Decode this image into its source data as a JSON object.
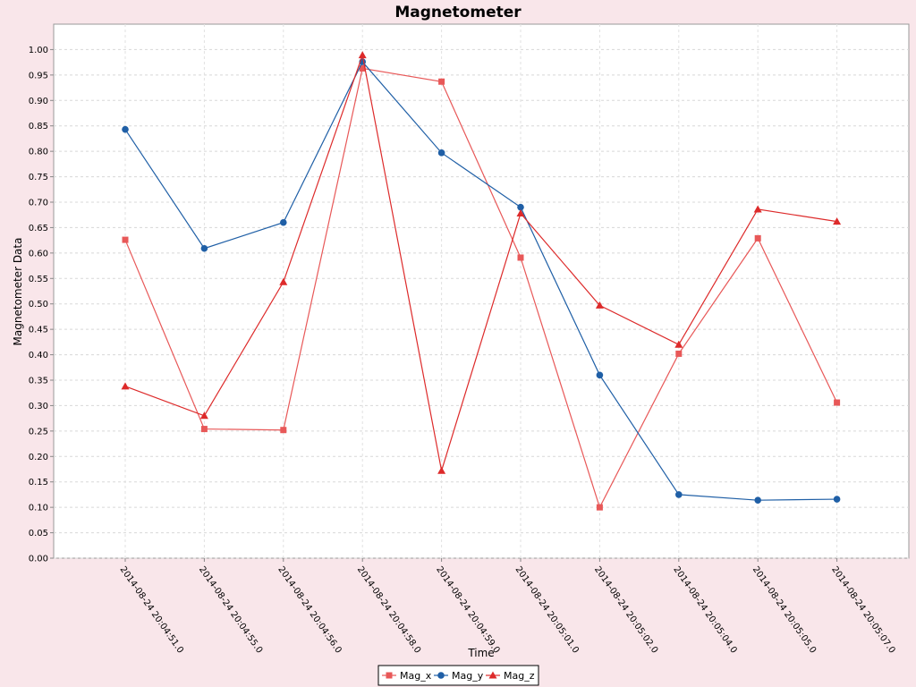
{
  "chart_data": {
    "type": "line",
    "title": "Magnetometer",
    "xlabel": "Time",
    "ylabel": "Magnetometer Data",
    "ylim": [
      0,
      1.05
    ],
    "y_ticks": [
      "0.00",
      "0.05",
      "0.10",
      "0.15",
      "0.20",
      "0.25",
      "0.30",
      "0.35",
      "0.40",
      "0.45",
      "0.50",
      "0.55",
      "0.60",
      "0.65",
      "0.70",
      "0.75",
      "0.80",
      "0.85",
      "0.90",
      "0.95",
      "1.00"
    ],
    "grid": true,
    "legend_position": "bottom",
    "categories": [
      "2014-08-24 20:04:51.0",
      "2014-08-24 20:04:55.0",
      "2014-08-24 20:04:56.0",
      "2014-08-24 20:04:58.0",
      "2014-08-24 20:04:59.0",
      "2014-08-24 20:05:01.0",
      "2014-08-24 20:05:02.0",
      "2014-08-24 20:05:04.0",
      "2014-08-24 20:05:05.0",
      "2014-08-24 20:05:07.0"
    ],
    "series": [
      {
        "name": "Mag_x",
        "marker": "square",
        "color": "#e85858",
        "values": [
          0.626,
          0.254,
          0.252,
          0.963,
          0.937,
          0.591,
          0.1,
          0.402,
          0.629,
          0.306
        ]
      },
      {
        "name": "Mag_y",
        "marker": "circle",
        "color": "#1f5fa6",
        "values": [
          0.843,
          0.609,
          0.66,
          0.976,
          0.797,
          0.69,
          0.36,
          0.125,
          0.114,
          0.116
        ]
      },
      {
        "name": "Mag_z",
        "marker": "triangle",
        "color": "#dd2a2a",
        "values": [
          0.338,
          0.28,
          0.543,
          0.989,
          0.172,
          0.678,
          0.497,
          0.42,
          0.686,
          0.662
        ]
      }
    ]
  }
}
